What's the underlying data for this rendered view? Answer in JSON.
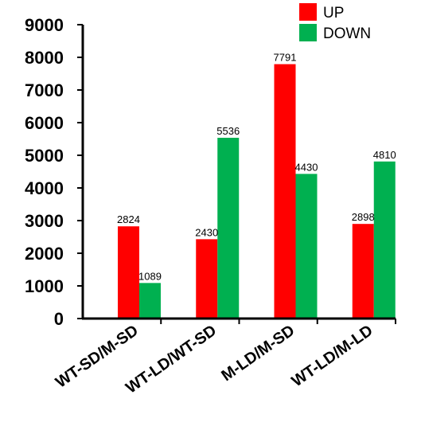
{
  "chart_data": {
    "type": "bar",
    "categories": [
      "WT-SD/M-SD",
      "WT-LD/WT-SD",
      "M-LD/M-SD",
      "WT-LD/M-LD"
    ],
    "series": [
      {
        "name": "UP",
        "color": "#ff0000",
        "values": [
          2824,
          2430,
          7791,
          2898
        ]
      },
      {
        "name": "DOWN",
        "color": "#00b050",
        "values": [
          1089,
          5536,
          4430,
          4810
        ]
      }
    ],
    "ylim": [
      0,
      9000
    ],
    "yticks": [
      0,
      1000,
      2000,
      3000,
      4000,
      5000,
      6000,
      7000,
      8000,
      9000
    ],
    "title": "",
    "xlabel": "",
    "ylabel": "",
    "grid": false,
    "legend_position": "top-right"
  }
}
